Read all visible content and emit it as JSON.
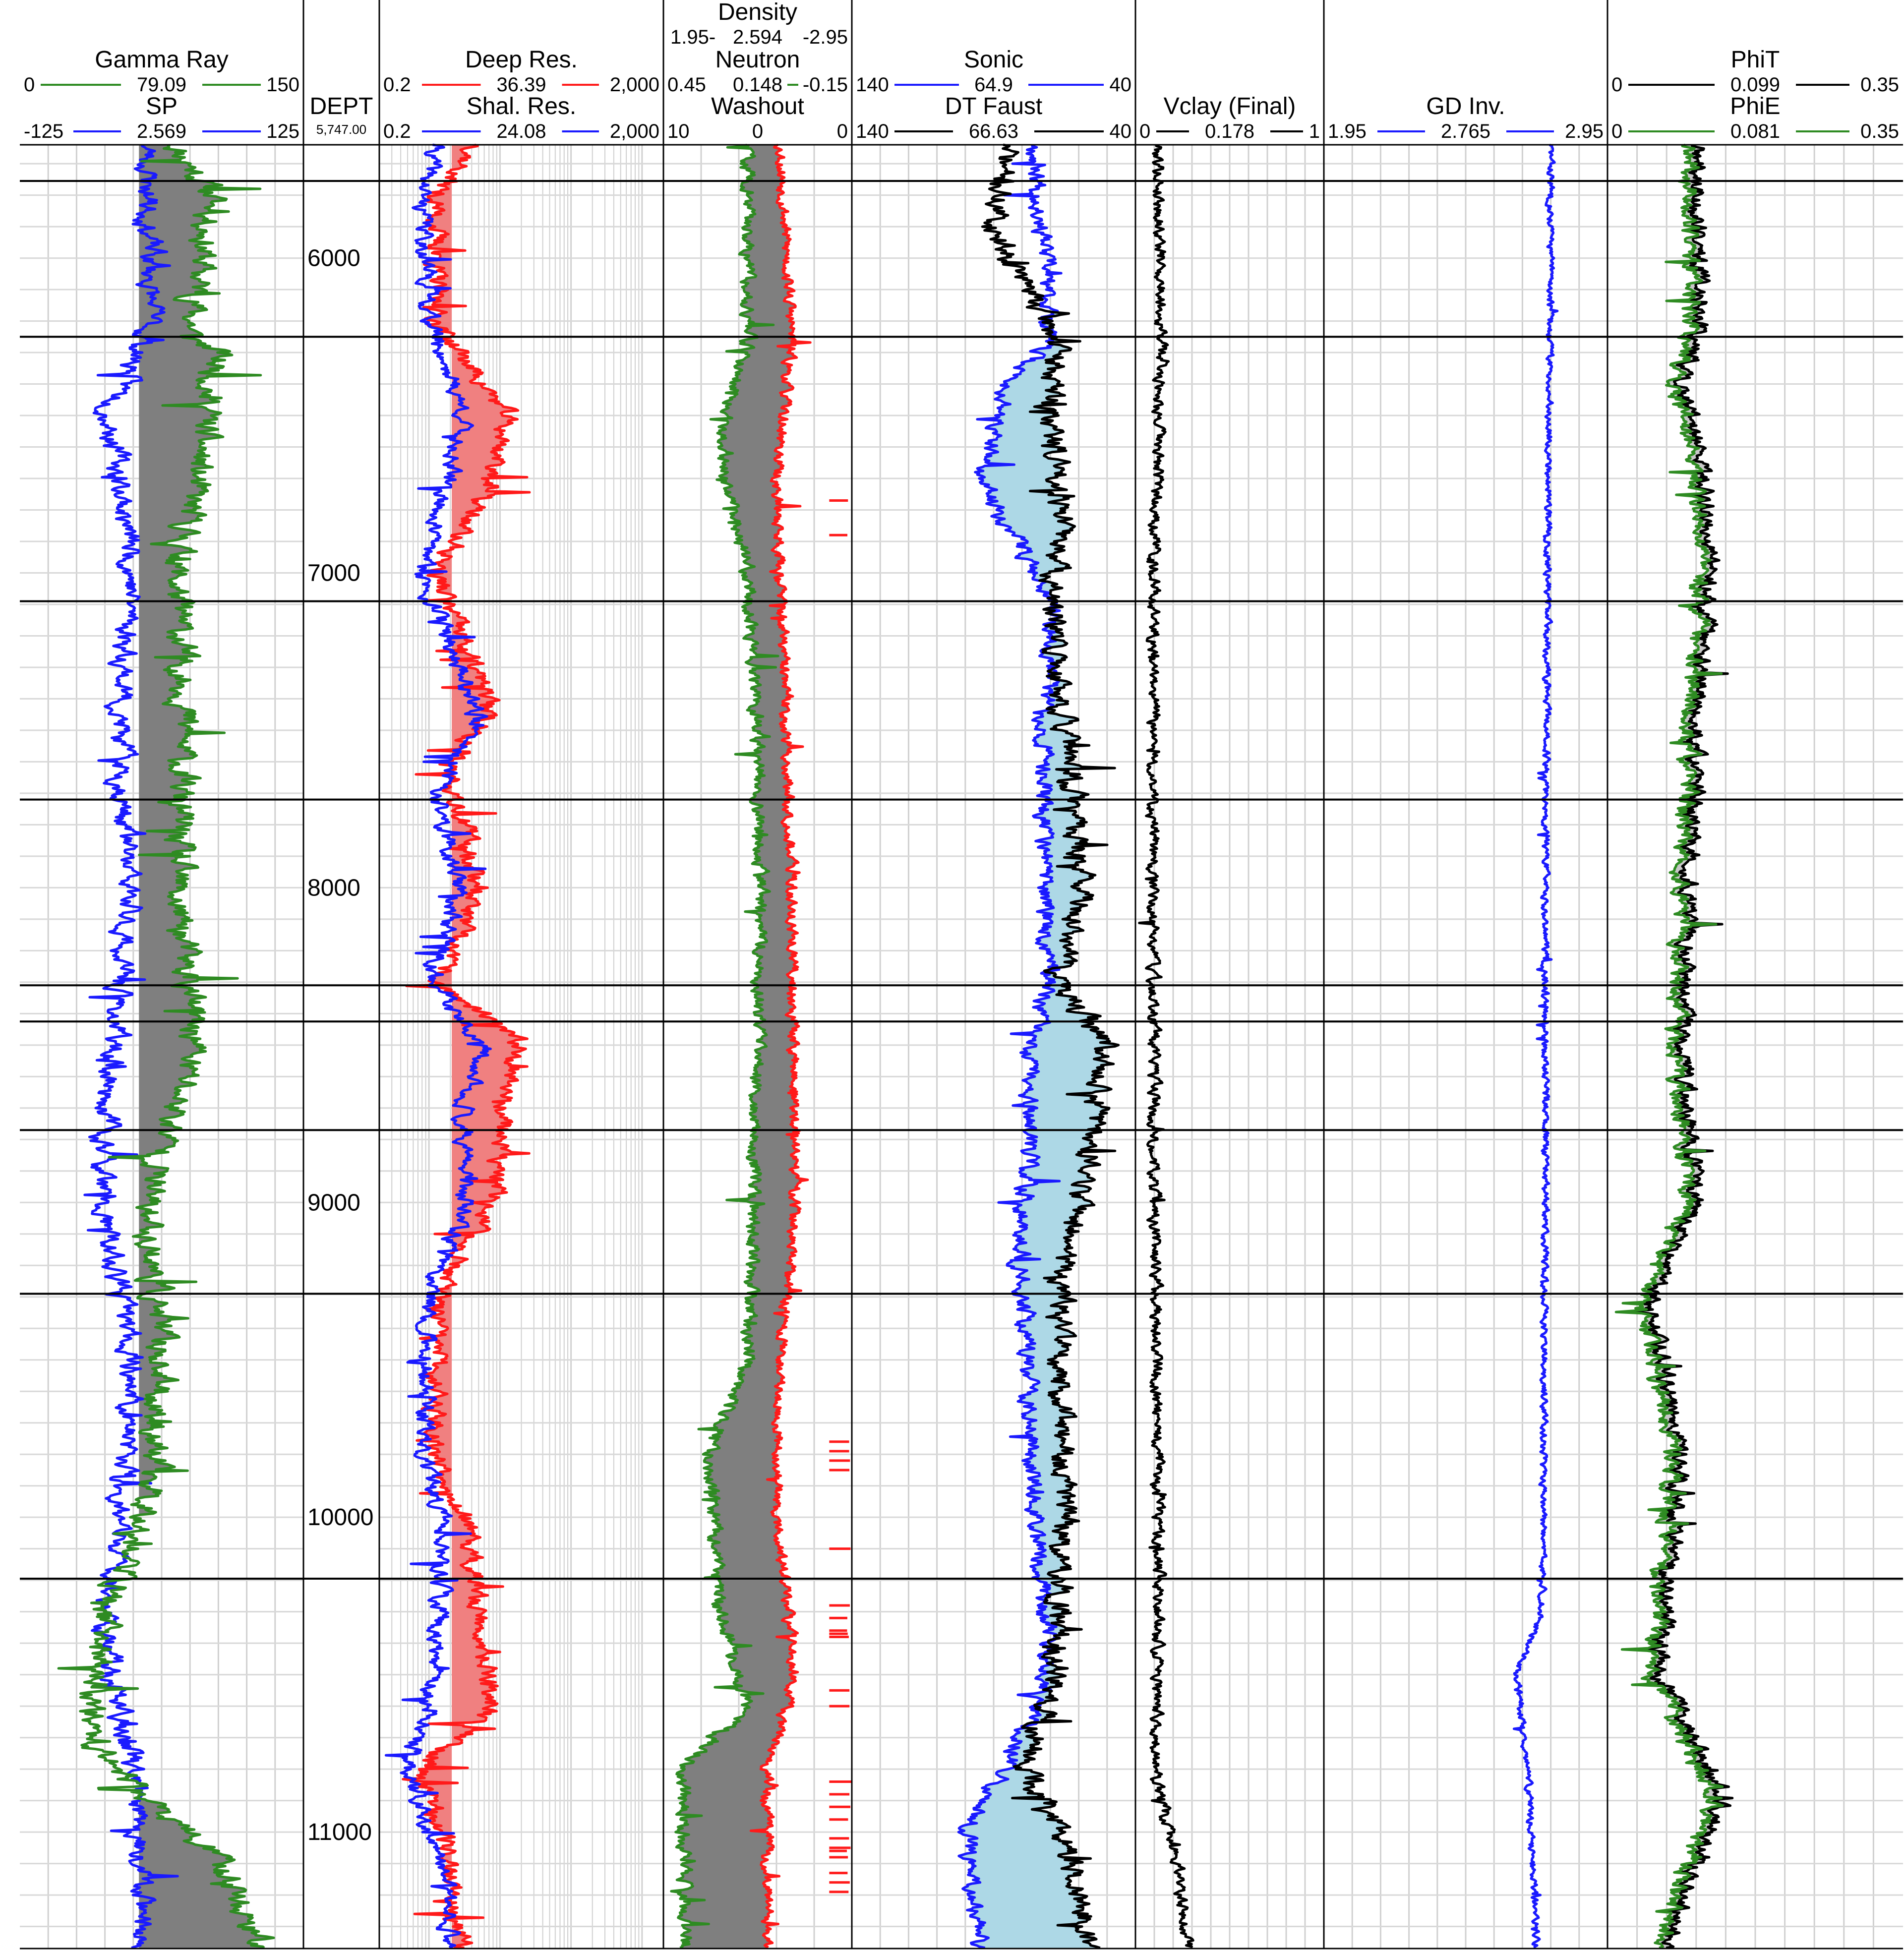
{
  "chart_data": {
    "type": "line",
    "title": "",
    "depth_track": {
      "label": "DEPT",
      "cursor_depth": "5,747.00",
      "depth_ticks": [
        "6000",
        "7000",
        "8000",
        "9000",
        "10000",
        "11000"
      ],
      "ylim": [
        5640,
        11370
      ]
    },
    "tracks": [
      {
        "id": "gr_sp",
        "curves": [
          {
            "name": "Gamma Ray",
            "min": "0",
            "value": "79.09",
            "max": "150",
            "color": "#2e8b22"
          },
          {
            "name": "SP",
            "min": "-125",
            "value": "2.569",
            "max": "125",
            "color": "#1a1aff"
          }
        ]
      },
      {
        "id": "resistivity",
        "scale": "log",
        "curves": [
          {
            "name": "Deep Res.",
            "min": "0.2",
            "value": "36.39",
            "max": "2,000",
            "color": "#ff1a1a"
          },
          {
            "name": "Shal. Res.",
            "min": "0.2",
            "value": "24.08",
            "max": "2,000",
            "color": "#1a1aff"
          }
        ]
      },
      {
        "id": "porosity",
        "curves": [
          {
            "name": "Density",
            "min": "1.95",
            "value": "2.594",
            "max": "2.95",
            "color": "#ff1a1a"
          },
          {
            "name": "Neutron",
            "min": "0.45",
            "value": "0.148",
            "max": "-0.15",
            "color": "#2e8b22"
          },
          {
            "name": "Washout",
            "min": "10",
            "value": "0",
            "max": "0",
            "color": "#ff1a1a"
          }
        ]
      },
      {
        "id": "sonic",
        "curves": [
          {
            "name": "Sonic",
            "min": "140",
            "value": "64.9",
            "max": "40",
            "color": "#1a1aff"
          },
          {
            "name": "DT Faust",
            "min": "140",
            "value": "66.63",
            "max": "40",
            "color": "#000000"
          }
        ]
      },
      {
        "id": "vclay",
        "curves": [
          {
            "name": "Vclay (Final)",
            "min": "0",
            "value": "0.178",
            "max": "1",
            "color": "#000000"
          }
        ]
      },
      {
        "id": "gd",
        "curves": [
          {
            "name": "GD Inv.",
            "min": "1.95",
            "value": "2.765",
            "max": "2.95",
            "color": "#1a1aff"
          }
        ]
      },
      {
        "id": "phi",
        "curves": [
          {
            "name": "PhiT",
            "min": "0",
            "value": "0.099",
            "max": "0.35",
            "color": "#000000"
          },
          {
            "name": "PhiE",
            "min": "0",
            "value": "0.081",
            "max": "0.35",
            "color": "#2e8b22"
          }
        ]
      }
    ],
    "zone_tops": [
      5755,
      6250,
      7090,
      7720,
      8310,
      8425,
      8770,
      9290,
      10195
    ],
    "fill_colors": {
      "gr_shale": "#7f7f7f",
      "res_fill": "#f08080",
      "sonic_fill": "#add8e6",
      "phi_fill": "#c8c8c8"
    }
  }
}
